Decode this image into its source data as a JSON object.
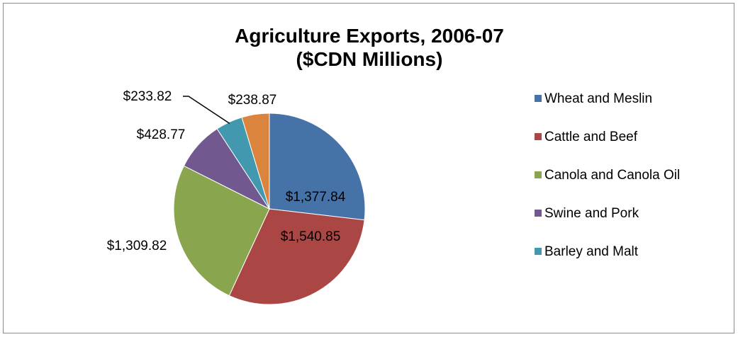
{
  "chart_data": {
    "type": "pie",
    "title": [
      "Agriculture Exports, 2006-07",
      "($CDN Millions)"
    ],
    "slices": [
      {
        "label": "Wheat and Meslin",
        "value": 1377.84,
        "display": "$1,377.84",
        "color": "#4572a7"
      },
      {
        "label": "Cattle and Beef",
        "value": 1540.85,
        "display": "$1,540.85",
        "color": "#aa4643"
      },
      {
        "label": "Canola and Canola Oil",
        "value": 1309.82,
        "display": "$1,309.82",
        "color": "#89a54e"
      },
      {
        "label": "Swine and Pork",
        "value": 428.77,
        "display": "$428.77",
        "color": "#71588f"
      },
      {
        "label": "Barley and Malt",
        "value": 233.82,
        "display": "$233.82",
        "color": "#4198af"
      },
      {
        "label": "",
        "value": 238.87,
        "display": "$238.87",
        "color": "#db843d"
      }
    ],
    "legend": [
      "Wheat and Meslin",
      "Cattle and Beef",
      "Canola and Canola Oil",
      "Swine and Pork",
      "Barley and Malt"
    ],
    "legend_position": "right"
  }
}
